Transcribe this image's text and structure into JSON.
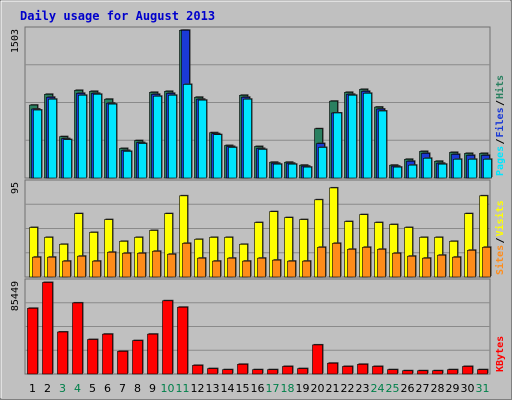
{
  "chart_data": {
    "type": "bar",
    "title": "Daily usage for August 2013",
    "categories": [
      "1",
      "2",
      "3",
      "4",
      "5",
      "6",
      "7",
      "8",
      "9",
      "10",
      "11",
      "12",
      "13",
      "14",
      "15",
      "16",
      "17",
      "18",
      "19",
      "20",
      "21",
      "22",
      "23",
      "24",
      "25",
      "26",
      "27",
      "28",
      "29",
      "30",
      "31"
    ],
    "weekend_days": [
      3,
      4,
      10,
      11,
      17,
      18,
      24,
      25,
      31
    ],
    "colors": {
      "hits": "#2a8060",
      "files": "#1a3ad6",
      "pages": "#00e6ff",
      "visits": "#ffff00",
      "sites": "#ff8c1a",
      "kbytes": "#ff0000",
      "background": "#c0c0c0",
      "title": "#0000cc",
      "weekend_label": "#00804a"
    },
    "panels": [
      {
        "id": "hits_panel",
        "ymax_label": "1503",
        "ymax": 1503,
        "legend": [
          {
            "label": "Pages",
            "color": "#00e6ff"
          },
          {
            "label": "Files",
            "color": "#1a3ad6"
          },
          {
            "label": "Hits",
            "color": "#2a8060"
          }
        ],
        "series": [
          {
            "name": "Hits",
            "values": [
              740,
              850,
              420,
              890,
              880,
              800,
              300,
              380,
              870,
              880,
              1500,
              820,
              460,
              330,
              840,
              320,
              160,
              160,
              130,
              500,
              780,
              870,
              900,
              720,
              130,
              190,
              270,
              170,
              260,
              250,
              250
            ]
          },
          {
            "name": "Files",
            "values": [
              700,
              820,
              400,
              860,
              860,
              760,
              280,
              360,
              850,
              860,
              1500,
              800,
              450,
              320,
              820,
              300,
              150,
              150,
              120,
              350,
              660,
              850,
              880,
              700,
              120,
              170,
              250,
              150,
              240,
              230,
              230
            ]
          },
          {
            "name": "Pages",
            "values": [
              690,
              800,
              390,
              840,
              850,
              750,
              270,
              350,
              830,
              840,
              950,
              790,
              440,
              310,
              800,
              290,
              140,
              140,
              110,
              310,
              660,
              840,
              860,
              680,
              110,
              130,
              200,
              140,
              190,
              190,
              190
            ]
          }
        ]
      },
      {
        "id": "visits_panel",
        "ymax_label": "95",
        "ymax": 95,
        "legend": [
          {
            "label": "Sites",
            "color": "#ff8c1a"
          },
          {
            "label": "Visits",
            "color": "#ffff00"
          }
        ],
        "series": [
          {
            "name": "Visits",
            "values": [
              50,
              40,
              33,
              64,
              45,
              58,
              36,
              40,
              47,
              64,
              82,
              38,
              40,
              40,
              33,
              55,
              66,
              60,
              58,
              78,
              90,
              56,
              63,
              55,
              53,
              50,
              40,
              40,
              36,
              64,
              82
            ]
          },
          {
            "name": "Sites",
            "values": [
              20,
              20,
              16,
              21,
              16,
              25,
              24,
              24,
              26,
              23,
              34,
              19,
              16,
              19,
              16,
              19,
              17,
              16,
              16,
              30,
              34,
              28,
              30,
              28,
              24,
              21,
              19,
              22,
              20,
              27,
              30
            ]
          }
        ]
      },
      {
        "id": "kbytes_panel",
        "ymax_label": "85449",
        "ymax": 85449,
        "legend": [
          {
            "label": "KBytes",
            "color": "#ff0000"
          }
        ],
        "series": [
          {
            "name": "KBytes",
            "values": [
              61000,
              85000,
              39000,
              66000,
              32000,
              37000,
              21000,
              31000,
              37000,
              68000,
              62000,
              8000,
              5000,
              4000,
              9000,
              4000,
              4000,
              7000,
              5000,
              27000,
              10000,
              7000,
              9000,
              7000,
              4000,
              3000,
              3000,
              3000,
              4000,
              7000,
              4000
            ]
          }
        ]
      }
    ]
  }
}
